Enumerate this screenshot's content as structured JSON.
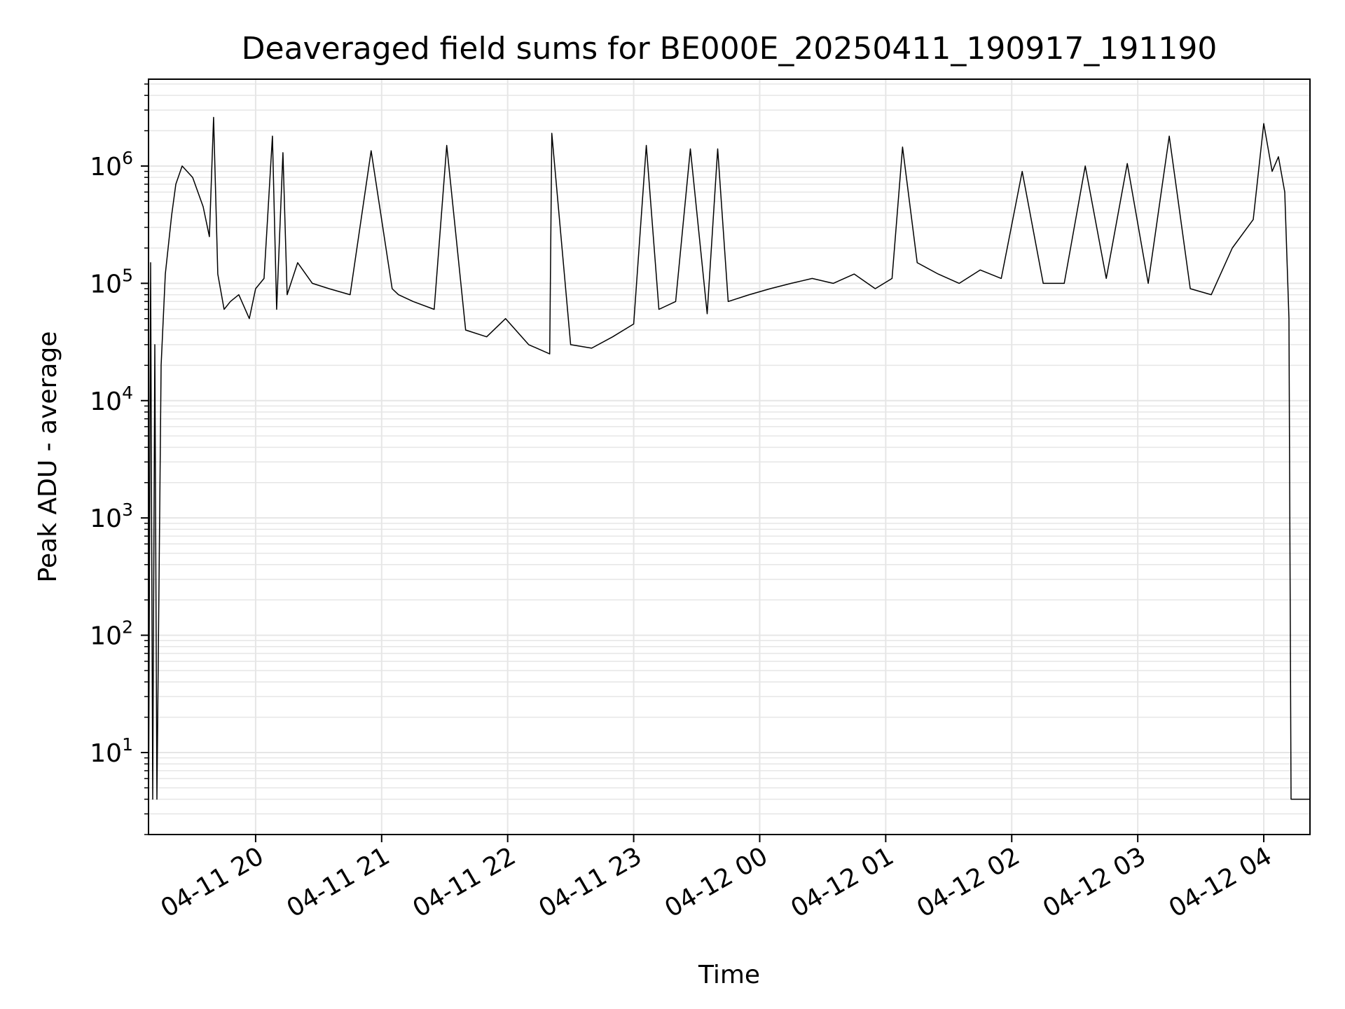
{
  "chart_data": {
    "type": "line",
    "title": "Deaveraged field sums for BE000E_20250411_190917_191190",
    "xlabel": "Time",
    "ylabel": "Peak ADU - average",
    "yscale": "log",
    "ylim": [
      2,
      5500000
    ],
    "xlim": [
      "2025-04-11 19:09",
      "2025-04-12 04:22"
    ],
    "grid": true,
    "line_color": "#000000",
    "grid_color": "#e6e6e6",
    "x_ticks": [
      {
        "value": "2025-04-11 20:00",
        "label": "04-11 20"
      },
      {
        "value": "2025-04-11 21:00",
        "label": "04-11 21"
      },
      {
        "value": "2025-04-11 22:00",
        "label": "04-11 22"
      },
      {
        "value": "2025-04-11 23:00",
        "label": "04-11 23"
      },
      {
        "value": "2025-04-12 00:00",
        "label": "04-12 00"
      },
      {
        "value": "2025-04-12 01:00",
        "label": "04-12 01"
      },
      {
        "value": "2025-04-12 02:00",
        "label": "04-12 02"
      },
      {
        "value": "2025-04-12 03:00",
        "label": "04-12 03"
      },
      {
        "value": "2025-04-12 04:00",
        "label": "04-12 04"
      }
    ],
    "y_ticks": [
      {
        "value": 10,
        "base": "10",
        "exp": "1"
      },
      {
        "value": 100,
        "base": "10",
        "exp": "2"
      },
      {
        "value": 1000,
        "base": "10",
        "exp": "3"
      },
      {
        "value": 10000,
        "base": "10",
        "exp": "4"
      },
      {
        "value": 100000,
        "base": "10",
        "exp": "5"
      },
      {
        "value": 1000000,
        "base": "10",
        "exp": "6"
      }
    ],
    "series": [
      {
        "x": [
          "2025-04-11 19:09",
          "2025-04-11 19:10",
          "2025-04-11 19:11",
          "2025-04-11 19:12",
          "2025-04-11 19:13",
          "2025-04-11 19:15",
          "2025-04-11 19:17",
          "2025-04-11 19:20",
          "2025-04-11 19:22",
          "2025-04-11 19:25",
          "2025-04-11 19:30",
          "2025-04-11 19:35",
          "2025-04-11 19:38",
          "2025-04-11 19:40",
          "2025-04-11 19:42",
          "2025-04-11 19:45",
          "2025-04-11 19:48",
          "2025-04-11 19:52",
          "2025-04-11 19:57",
          "2025-04-11 20:00",
          "2025-04-11 20:04",
          "2025-04-11 20:08",
          "2025-04-11 20:10",
          "2025-04-11 20:13",
          "2025-04-11 20:15",
          "2025-04-11 20:20",
          "2025-04-11 20:27",
          "2025-04-11 20:35",
          "2025-04-11 20:45",
          "2025-04-11 20:55",
          "2025-04-11 21:05",
          "2025-04-11 21:08",
          "2025-04-11 21:15",
          "2025-04-11 21:25",
          "2025-04-11 21:31",
          "2025-04-11 21:40",
          "2025-04-11 21:50",
          "2025-04-11 21:59",
          "2025-04-11 22:10",
          "2025-04-11 22:20",
          "2025-04-11 22:21",
          "2025-04-11 22:30",
          "2025-04-11 22:40",
          "2025-04-11 22:50",
          "2025-04-11 23:00",
          "2025-04-11 23:06",
          "2025-04-11 23:12",
          "2025-04-11 23:20",
          "2025-04-11 23:27",
          "2025-04-11 23:35",
          "2025-04-11 23:40",
          "2025-04-11 23:45",
          "2025-04-11 23:55",
          "2025-04-12 00:05",
          "2025-04-12 00:15",
          "2025-04-12 00:25",
          "2025-04-12 00:35",
          "2025-04-12 00:45",
          "2025-04-12 00:55",
          "2025-04-12 01:03",
          "2025-04-12 01:08",
          "2025-04-12 01:15",
          "2025-04-12 01:25",
          "2025-04-12 01:35",
          "2025-04-12 01:45",
          "2025-04-12 01:55",
          "2025-04-12 02:05",
          "2025-04-12 02:15",
          "2025-04-12 02:25",
          "2025-04-12 02:35",
          "2025-04-12 02:45",
          "2025-04-12 02:55",
          "2025-04-12 03:05",
          "2025-04-12 03:15",
          "2025-04-12 03:25",
          "2025-04-12 03:35",
          "2025-04-12 03:45",
          "2025-04-12 03:55",
          "2025-04-12 04:00",
          "2025-04-12 04:04",
          "2025-04-12 04:07",
          "2025-04-12 04:10",
          "2025-04-12 04:12",
          "2025-04-12 04:13",
          "2025-04-12 04:15",
          "2025-04-12 04:22"
        ],
        "y": [
          2,
          150000,
          4,
          30000,
          4,
          20000,
          120000,
          380000,
          700000,
          1000000,
          800000,
          450000,
          250000,
          2600000,
          120000,
          60000,
          70000,
          80000,
          50000,
          90000,
          110000,
          1800000,
          60000,
          1300000,
          80000,
          150000,
          100000,
          90000,
          80000,
          1350000,
          90000,
          80000,
          70000,
          60000,
          1500000,
          40000,
          35000,
          50000,
          30000,
          25000,
          1900000,
          30000,
          28000,
          35000,
          45000,
          1500000,
          60000,
          70000,
          1400000,
          55000,
          1400000,
          70000,
          80000,
          90000,
          100000,
          110000,
          100000,
          120000,
          90000,
          110000,
          1450000,
          150000,
          120000,
          100000,
          130000,
          110000,
          900000,
          100000,
          100000,
          1000000,
          110000,
          1050000,
          100000,
          1800000,
          90000,
          80000,
          200000,
          350000,
          2300000,
          900000,
          1200000,
          600000,
          50000,
          4,
          4,
          4
        ]
      }
    ]
  }
}
